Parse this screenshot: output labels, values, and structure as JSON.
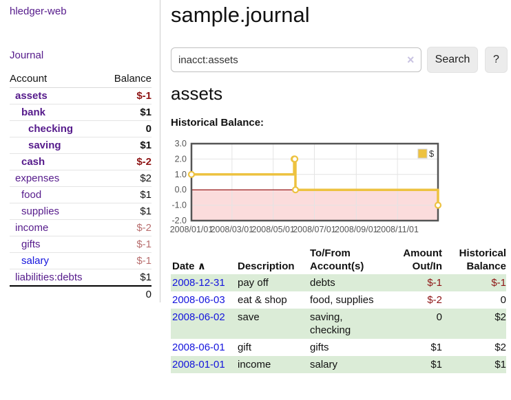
{
  "colors": {
    "purple": "#551a8b",
    "blue": "#1414dd",
    "neg": "#8e1515",
    "rose": "#b86e6e",
    "stripe": "#dbecd7",
    "btn-bg": "#ececec"
  },
  "sidebar": {
    "brand": "hledger-web",
    "journal_link": "Journal",
    "accounts_table": {
      "headers": {
        "account": "Account",
        "balance": "Balance"
      },
      "rows": [
        {
          "name": "assets",
          "level": 0,
          "bold": true,
          "link": "purple",
          "balance": "$-1",
          "bal": "neg"
        },
        {
          "name": "bank",
          "level": 1,
          "bold": true,
          "link": "purple",
          "balance": "$1",
          "bal": "pos"
        },
        {
          "name": "checking",
          "level": 2,
          "bold": true,
          "link": "purple",
          "balance": "0",
          "bal": "pos"
        },
        {
          "name": "saving",
          "level": 2,
          "bold": true,
          "link": "purple",
          "balance": "$1",
          "bal": "pos"
        },
        {
          "name": "cash",
          "level": 1,
          "bold": true,
          "link": "purple",
          "balance": "$-2",
          "bal": "neg"
        },
        {
          "name": "expenses",
          "level": 0,
          "bold": false,
          "link": "purple",
          "balance": "$2",
          "bal": "pos"
        },
        {
          "name": "food",
          "level": 1,
          "bold": false,
          "link": "purple",
          "balance": "$1",
          "bal": "pos"
        },
        {
          "name": "supplies",
          "level": 1,
          "bold": false,
          "link": "purple",
          "balance": "$1",
          "bal": "pos"
        },
        {
          "name": "income",
          "level": 0,
          "bold": false,
          "link": "purple",
          "balance": "$-2",
          "bal": "rose"
        },
        {
          "name": "gifts",
          "level": 1,
          "bold": false,
          "link": "purple",
          "balance": "$-1",
          "bal": "rose"
        },
        {
          "name": "salary",
          "level": 1,
          "bold": false,
          "link": "blue",
          "balance": "$-1",
          "bal": "rose"
        },
        {
          "name": "liabilities:debts",
          "level": 0,
          "bold": false,
          "link": "purple",
          "balance": "$1",
          "bal": "pos"
        }
      ],
      "total": "0"
    }
  },
  "main": {
    "title": "sample.journal",
    "search": {
      "value": "inacct:assets",
      "clear_icon": "×",
      "button_label": "Search",
      "help_label": "?"
    },
    "account_heading": "assets",
    "chart_heading": "Historical Balance:"
  },
  "chart_data": {
    "type": "line",
    "title": "Historical Balance",
    "step": true,
    "series": [
      {
        "name": "$",
        "color": "#edc240",
        "points": [
          [
            "2008-01-01",
            1
          ],
          [
            "2008-06-01",
            2
          ],
          [
            "2008-06-02",
            2
          ],
          [
            "2008-06-03",
            0
          ],
          [
            "2008-12-31",
            -1
          ]
        ]
      }
    ],
    "xlim": [
      "2008-01-01",
      "2008-12-31"
    ],
    "ylim": [
      -2,
      3
    ],
    "y_ticks": [
      3,
      2,
      1,
      0,
      -1,
      -2
    ],
    "x_ticks": [
      "2008/01/01",
      "2008/03/01",
      "2008/05/01",
      "2008/07/01",
      "2008/09/01",
      "2008/11/01"
    ],
    "legend": {
      "position": "top-right",
      "label": "$"
    },
    "grid": true,
    "negative_fill": "#fbdcdc",
    "zero_line_color": "#8b0000",
    "grid_color": "#e4e4e4",
    "border_color": "#545454"
  },
  "transactions": {
    "headers": {
      "date": "Date",
      "sort_icon": "∧",
      "description": "Description",
      "accounts_line1": "To/From",
      "accounts_line2": "Account(s)",
      "amount_line1": "Amount",
      "amount_line2": "Out/In",
      "balance_line1": "Historical",
      "balance_line2": "Balance"
    },
    "rows": [
      {
        "date": "2008-12-31",
        "description": "pay off",
        "accounts": "debts",
        "amount": "$-1",
        "amount_style": "neg",
        "balance": "$-1",
        "balance_style": "neg"
      },
      {
        "date": "2008-06-03",
        "description": "eat & shop",
        "accounts": "food, supplies",
        "amount": "$-2",
        "amount_style": "neg",
        "balance": "0",
        "balance_style": "pos"
      },
      {
        "date": "2008-06-02",
        "description": "save",
        "accounts": "saving,\nchecking",
        "amount": "0",
        "amount_style": "pos",
        "balance": "$2",
        "balance_style": "pos"
      },
      {
        "date": "2008-06-01",
        "description": "gift",
        "accounts": "gifts",
        "amount": "$1",
        "amount_style": "pos",
        "balance": "$2",
        "balance_style": "pos"
      },
      {
        "date": "2008-01-01",
        "description": "income",
        "accounts": "salary",
        "amount": "$1",
        "amount_style": "pos",
        "balance": "$1",
        "balance_style": "pos"
      }
    ]
  }
}
